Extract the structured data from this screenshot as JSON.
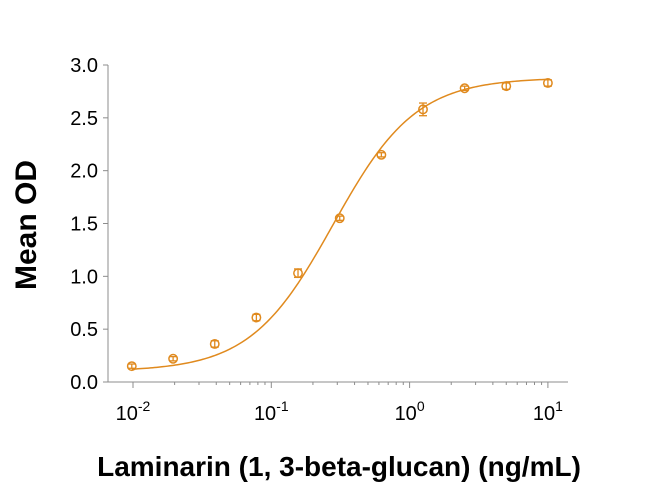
{
  "chart_data": {
    "type": "scatter",
    "xlabel": "Laminarin (1, 3-beta-glucan) (ng/mL)",
    "ylabel": "Mean OD",
    "x_scale": "log",
    "xlim": [
      0.01,
      10
    ],
    "ylim": [
      0,
      3.0
    ],
    "grid": false,
    "legend": "none",
    "x_ticks": [
      {
        "base": "10",
        "exp": "-2",
        "value": 0.01
      },
      {
        "base": "10",
        "exp": "-1",
        "value": 0.1
      },
      {
        "base": "10",
        "exp": "0",
        "value": 1
      },
      {
        "base": "10",
        "exp": "1",
        "value": 10
      }
    ],
    "y_ticks": [
      "0.0",
      "0.5",
      "1.0",
      "1.5",
      "2.0",
      "2.5",
      "3.0"
    ],
    "color": "#E08A1E",
    "series": [
      {
        "x": [
          0.0098,
          0.0195,
          0.039,
          0.078,
          0.156,
          0.3125,
          0.625,
          1.25,
          2.5,
          5,
          10
        ],
        "y": [
          0.15,
          0.22,
          0.36,
          0.61,
          1.03,
          1.55,
          2.15,
          2.58,
          2.78,
          2.8,
          2.83
        ],
        "err": [
          0.02,
          0.02,
          0.03,
          0.03,
          0.04,
          0.02,
          0.02,
          0.06,
          0.02,
          0.03,
          0.03
        ]
      }
    ],
    "fit": {
      "model": "4PL",
      "bottom": 0.1,
      "top": 2.88,
      "ec50": 0.28,
      "hill": 1.45
    }
  }
}
